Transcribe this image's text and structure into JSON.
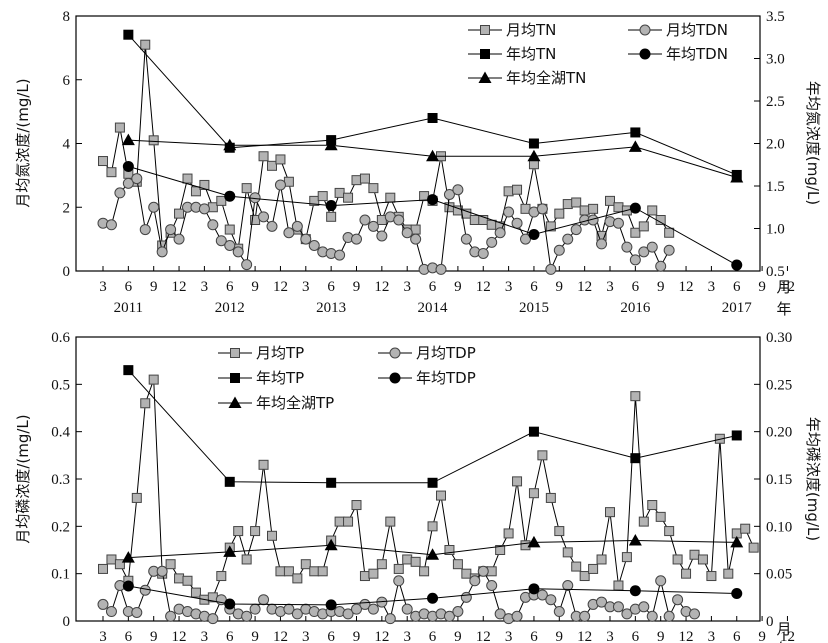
{
  "chart_data": [
    {
      "type": "line",
      "months_label": "月",
      "years_label": "年",
      "ylabel_left": "月均氮浓度/(mg/L)",
      "ylabel_right": "年均氮浓度(mg/L)",
      "ylim_left": [
        0,
        8
      ],
      "ylim_right": [
        0.5,
        3.5
      ],
      "yticks_left": [
        "0",
        "2",
        "4",
        "6",
        "8"
      ],
      "yticks_right": [
        "0.5",
        "1.0",
        "1.5",
        "2.0",
        "2.5",
        "3.0",
        "3.5"
      ],
      "month_ticks": [
        "3",
        "6",
        "9",
        "12",
        "3",
        "6",
        "9",
        "12",
        "3",
        "6",
        "9",
        "12",
        "3",
        "6",
        "9",
        "12",
        "3",
        "6",
        "9",
        "12",
        "3",
        "6",
        "9",
        "12",
        "3",
        "6",
        "9",
        "12"
      ],
      "year_ticks": [
        "2011",
        "2012",
        "2013",
        "2014",
        "2015",
        "2016",
        "2017"
      ],
      "grid": false,
      "legend_placement": "top-right",
      "series": [
        {
          "name": "月均TN",
          "marker": "square-open",
          "axis": "left",
          "start_month": 3,
          "values": [
            3.45,
            3.1,
            4.5,
            3.05,
            2.8,
            7.1,
            4.1,
            0.8,
            1.2,
            1.8,
            2.9,
            2.5,
            2.7,
            2.0,
            2.2,
            1.3,
            0.7,
            2.6,
            1.6,
            3.6,
            3.3,
            3.5,
            2.8,
            1.3,
            1.0,
            2.2,
            2.35,
            1.7,
            2.45,
            2.3,
            2.85,
            2.9,
            2.6,
            1.6,
            2.3,
            1.7,
            1.3,
            1.3,
            2.35,
            2.2,
            3.6,
            2.0,
            1.9,
            1.8,
            1.6,
            1.6,
            1.45,
            1.4,
            2.5,
            2.55,
            1.95,
            3.35,
            1.95,
            1.4,
            1.8,
            2.1,
            2.15,
            1.9,
            1.95,
            1.1,
            2.2,
            2.0,
            1.9,
            1.2,
            1.4,
            1.9,
            1.6,
            1.2
          ]
        },
        {
          "name": "月均TDN",
          "marker": "circle-open",
          "axis": "left",
          "start_month": 3,
          "values": [
            1.5,
            1.45,
            2.45,
            2.75,
            2.9,
            1.3,
            2.0,
            0.6,
            1.3,
            1.0,
            2.0,
            2.0,
            1.95,
            1.45,
            0.95,
            0.8,
            0.6,
            0.2,
            2.3,
            1.7,
            1.4,
            2.7,
            1.2,
            1.4,
            1.0,
            0.8,
            0.6,
            0.55,
            0.5,
            1.05,
            1.0,
            1.6,
            1.4,
            1.1,
            1.7,
            1.6,
            1.2,
            1.0,
            0.05,
            0.1,
            0.05,
            2.4,
            2.55,
            1.0,
            0.6,
            0.55,
            0.9,
            1.2,
            1.85,
            1.5,
            1.0,
            1.85,
            1.95,
            0.05,
            0.65,
            1.0,
            1.3,
            1.6,
            1.6,
            0.85,
            1.55,
            1.5,
            0.75,
            0.35,
            0.6,
            0.75,
            0.15,
            0.65
          ]
        },
        {
          "name": "年均TN",
          "marker": "square-filled",
          "axis": "right",
          "points": [
            [
              2011,
              6,
              3.28
            ],
            [
              2012,
              6,
              1.95
            ],
            [
              2013,
              6,
              2.04
            ],
            [
              2014,
              6,
              2.3
            ],
            [
              2015,
              6,
              2.0
            ],
            [
              2016,
              6,
              2.13
            ],
            [
              2017,
              6,
              1.63
            ]
          ]
        },
        {
          "name": "年均TDN",
          "marker": "circle-filled",
          "axis": "right",
          "points": [
            [
              2011,
              6,
              1.73
            ],
            [
              2012,
              6,
              1.38
            ],
            [
              2013,
              6,
              1.27
            ],
            [
              2014,
              6,
              1.34
            ],
            [
              2015,
              6,
              0.93
            ],
            [
              2016,
              6,
              1.24
            ],
            [
              2017,
              6,
              0.57
            ]
          ]
        },
        {
          "name": "年均全湖TN",
          "marker": "triangle-filled",
          "axis": "right",
          "points": [
            [
              2011,
              6,
              2.04
            ],
            [
              2012,
              6,
              1.98
            ],
            [
              2013,
              6,
              1.98
            ],
            [
              2014,
              6,
              1.85
            ],
            [
              2015,
              6,
              1.85
            ],
            [
              2016,
              6,
              1.96
            ],
            [
              2017,
              6,
              1.6
            ]
          ]
        }
      ]
    },
    {
      "type": "line",
      "months_label": "月",
      "years_label": "年",
      "ylabel_left": "月均磷浓度/(mg/L)",
      "ylabel_right": "年均磷浓度(mg/L)",
      "ylim_left": [
        0,
        0.6
      ],
      "ylim_right": [
        0,
        0.3
      ],
      "yticks_left": [
        "0",
        "0.1",
        "0.2",
        "0.3",
        "0.4",
        "0.5",
        "0.6"
      ],
      "yticks_right": [
        "0",
        "0.05",
        "0.10",
        "0.15",
        "0.20",
        "0.25",
        "0.30"
      ],
      "month_ticks": [
        "3",
        "6",
        "9",
        "12",
        "3",
        "6",
        "9",
        "12",
        "3",
        "6",
        "9",
        "12",
        "3",
        "6",
        "9",
        "12",
        "3",
        "6",
        "9",
        "12",
        "3",
        "6",
        "9",
        "12",
        "3",
        "6",
        "9",
        "12"
      ],
      "year_ticks": [
        "2011",
        "2012",
        "2013",
        "2014",
        "2015",
        "2016",
        "2017"
      ],
      "grid": false,
      "legend_placement": "top-left",
      "series": [
        {
          "name": "月均TP",
          "marker": "square-open",
          "axis": "left",
          "start_month": 3,
          "values": [
            0.11,
            0.13,
            0.12,
            0.085,
            0.26,
            0.46,
            0.51,
            0.1,
            0.12,
            0.09,
            0.085,
            0.06,
            0.045,
            0.05,
            0.095,
            0.155,
            0.19,
            0.13,
            0.19,
            0.33,
            0.18,
            0.105,
            0.105,
            0.09,
            0.12,
            0.105,
            0.105,
            0.17,
            0.21,
            0.21,
            0.245,
            0.095,
            0.1,
            0.12,
            0.21,
            0.11,
            0.13,
            0.125,
            0.105,
            0.2,
            0.265,
            0.15,
            0.12,
            0.1,
            0.09,
            0.105,
            0.105,
            0.15,
            0.185,
            0.295,
            0.16,
            0.27,
            0.35,
            0.26,
            0.19,
            0.145,
            0.115,
            0.095,
            0.11,
            0.13,
            0.23,
            0.075,
            0.135,
            0.475,
            0.21,
            0.245,
            0.22,
            0.19,
            0.13,
            0.1,
            0.14,
            0.13,
            0.095,
            0.385,
            0.1,
            0.185,
            0.195,
            0.155
          ]
        },
        {
          "name": "月均TDP",
          "marker": "circle-open",
          "axis": "left",
          "start_month": 3,
          "values": [
            0.035,
            0.02,
            0.075,
            0.02,
            0.018,
            0.065,
            0.105,
            0.105,
            0.01,
            0.025,
            0.02,
            0.015,
            0.01,
            0.005,
            0.045,
            0.025,
            0.015,
            0.01,
            0.025,
            0.045,
            0.025,
            0.02,
            0.025,
            0.015,
            0.025,
            0.02,
            0.015,
            0.02,
            0.02,
            0.015,
            0.025,
            0.035,
            0.025,
            0.04,
            0.005,
            0.085,
            0.025,
            0.01,
            0.015,
            0.01,
            0.015,
            0.01,
            0.02,
            0.05,
            0.085,
            0.105,
            0.075,
            0.015,
            0.005,
            0.01,
            0.05,
            0.055,
            0.055,
            0.045,
            0.02,
            0.075,
            0.01,
            0.01,
            0.035,
            0.04,
            0.03,
            0.03,
            0.015,
            0.025,
            0.03,
            0.01,
            0.085,
            0.01,
            0.045,
            0.02,
            0.015
          ]
        },
        {
          "name": "年均TP",
          "marker": "square-filled",
          "axis": "right",
          "points": [
            [
              2011,
              6,
              0.265
            ],
            [
              2012,
              6,
              0.147
            ],
            [
              2013,
              6,
              0.146
            ],
            [
              2014,
              6,
              0.146
            ],
            [
              2015,
              6,
              0.2
            ],
            [
              2016,
              6,
              0.172
            ],
            [
              2017,
              6,
              0.196
            ]
          ]
        },
        {
          "name": "年均TDP",
          "marker": "circle-filled",
          "axis": "right",
          "points": [
            [
              2011,
              6,
              0.037
            ],
            [
              2012,
              6,
              0.018
            ],
            [
              2013,
              6,
              0.017
            ],
            [
              2014,
              6,
              0.024
            ],
            [
              2015,
              6,
              0.034
            ],
            [
              2016,
              6,
              0.032
            ],
            [
              2017,
              6,
              0.029
            ]
          ]
        },
        {
          "name": "年均全湖TP",
          "marker": "triangle-filled",
          "axis": "right",
          "points": [
            [
              2011,
              6,
              0.067
            ],
            [
              2012,
              6,
              0.073
            ],
            [
              2013,
              6,
              0.08
            ],
            [
              2014,
              6,
              0.07
            ],
            [
              2015,
              6,
              0.083
            ],
            [
              2016,
              6,
              0.085
            ],
            [
              2017,
              6,
              0.083
            ]
          ]
        }
      ]
    }
  ]
}
